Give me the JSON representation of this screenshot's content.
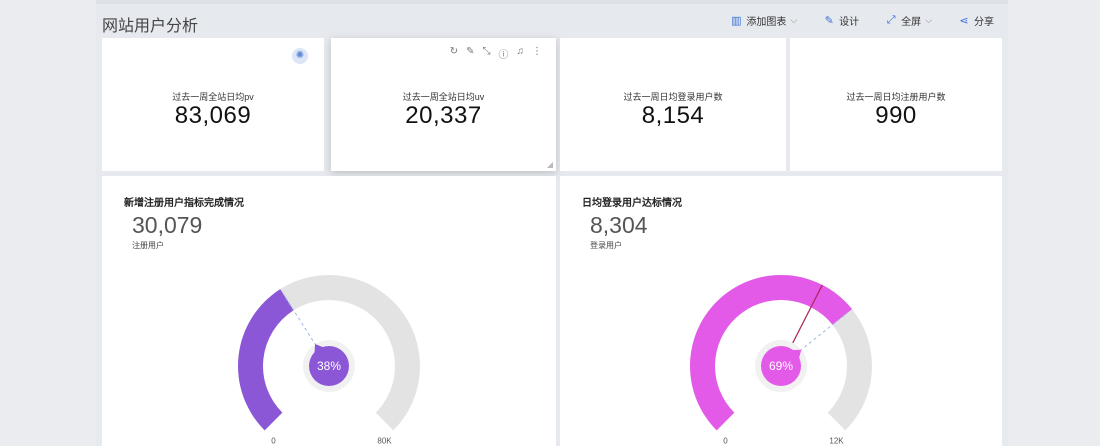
{
  "header": {
    "title": "网站用户分析",
    "toolbar": [
      {
        "icon": "bar-chart-icon",
        "label": "添加图表",
        "caret": true
      },
      {
        "icon": "design-icon",
        "label": "设计",
        "caret": false
      },
      {
        "icon": "fullscreen-icon",
        "label": "全屏",
        "caret": true
      },
      {
        "icon": "share-icon",
        "label": "分享",
        "caret": false
      }
    ]
  },
  "kpis": [
    {
      "label": "过去一周全站日均pv",
      "value": "83,069"
    },
    {
      "label": "过去一周全站日均uv",
      "value": "20,337"
    },
    {
      "label": "过去一周日均登录用户数",
      "value": "8,154"
    },
    {
      "label": "过去一周日均注册用户数",
      "value": "990"
    }
  ],
  "card_tools": [
    "refresh-icon",
    "edit-icon",
    "expand-icon",
    "info-icon",
    "bell-icon",
    "more-icon"
  ],
  "panels": [
    {
      "title": "新增注册用户指标完成情况",
      "value": "30,079",
      "sub": "注册用户",
      "percent_label": "38%",
      "min_label": "0",
      "max_label": "80K",
      "fraction": 0.38,
      "color": "#8c57d6"
    },
    {
      "title": "日均登录用户达标情况",
      "value": "8,304",
      "sub": "登录用户",
      "percent_label": "69%",
      "min_label": "0",
      "max_label": "12K",
      "fraction": 0.69,
      "target_fraction": 0.6,
      "color": "#e45ae8"
    }
  ],
  "chart_data": [
    {
      "type": "gauge",
      "title": "新增注册用户指标完成情况",
      "value": 30079,
      "min": 0,
      "max": 80000,
      "percent": 38
    },
    {
      "type": "gauge",
      "title": "日均登录用户达标情况",
      "value": 8304,
      "min": 0,
      "max": 12000,
      "percent": 69
    }
  ]
}
